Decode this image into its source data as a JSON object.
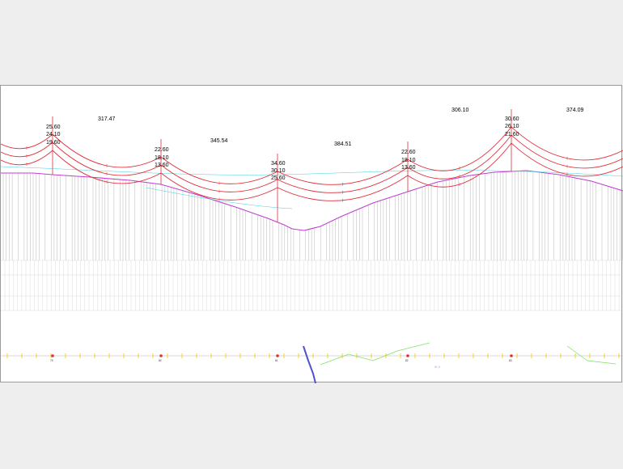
{
  "colors": {
    "conductor": "#e0303a",
    "ground": "#c040d0",
    "drop": "#9a9a9a",
    "tower": "#e0303a",
    "accent_cyan": "#40d0e0",
    "plan_axis": "#b0b0b0",
    "plan_mark": "#f2d000",
    "river": "#5050d0",
    "road": "#80e060"
  },
  "towers": [
    {
      "name": "tower-1",
      "heights": [
        "25.60",
        "24.10",
        "19.60"
      ],
      "plan_label": "79"
    },
    {
      "name": "tower-2",
      "heights": [
        "22.60",
        "18.10",
        "13.60"
      ],
      "plan_label": "80"
    },
    {
      "name": "tower-3",
      "heights": [
        "34.60",
        "30.10",
        "25.60"
      ],
      "plan_label": "81"
    },
    {
      "name": "tower-4",
      "heights": [
        "22.60",
        "18.10",
        "13.60"
      ],
      "plan_label": "82"
    },
    {
      "name": "tower-5",
      "heights": [
        "30.60",
        "26.10",
        "21.60"
      ],
      "plan_label": "83"
    }
  ],
  "spans": [
    "317.47",
    "345.54",
    "384.51",
    "306.10",
    "374.09"
  ],
  "plan_notes": [
    "W. G"
  ]
}
